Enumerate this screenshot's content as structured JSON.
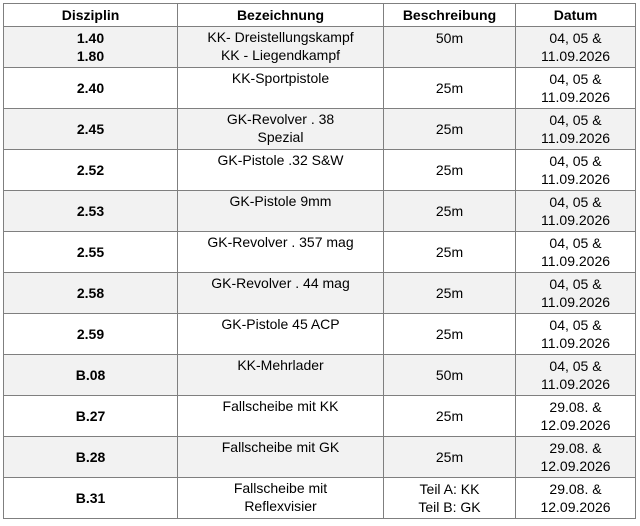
{
  "table": {
    "header": [
      "Disziplin",
      "Bezeichnung",
      "Beschreibung",
      "Datum"
    ],
    "rows": [
      [
        "1.40\n1.80",
        "KK- Dreistellungskampf\nKK - Liegendkampf",
        "50m",
        "04, 05 &\n11.09.2026"
      ],
      [
        "2.40",
        "KK-Sportpistole",
        "25m",
        "04, 05 &\n11.09.2026"
      ],
      [
        "2.45",
        "GK-Revolver . 38\nSpezial",
        "25m",
        "04, 05 &\n11.09.2026"
      ],
      [
        "2.52",
        "GK-Pistole .32 S&W",
        "25m",
        "04, 05 &\n11.09.2026"
      ],
      [
        "2.53",
        "GK-Pistole 9mm",
        "25m",
        "04, 05 &\n11.09.2026"
      ],
      [
        "2.55",
        "GK-Revolver . 357 mag",
        "25m",
        "04, 05 &\n11.09.2026"
      ],
      [
        "2.58",
        "GK-Revolver . 44 mag",
        "25m",
        "04, 05 &\n11.09.2026"
      ],
      [
        "2.59",
        "GK-Pistole 45 ACP",
        "25m",
        "04, 05 &\n11.09.2026"
      ],
      [
        "B.08",
        "KK-Mehrlader",
        "50m",
        "04, 05 &\n11.09.2026"
      ],
      [
        "B.27",
        "Fallscheibe mit KK",
        "25m",
        "29.08. &\n12.09.2026"
      ],
      [
        "B.28",
        "Fallscheibe mit GK",
        "25m",
        "29.08. &\n12.09.2026"
      ],
      [
        "B.31",
        "Fallscheibe mit\nReflexvisier",
        "Teil A: KK\nTeil B:  GK",
        "29.08. &\n12.09.2026"
      ]
    ]
  }
}
